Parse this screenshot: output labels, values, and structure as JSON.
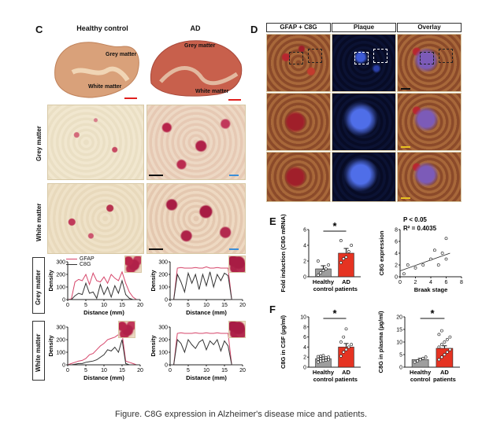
{
  "panels": {
    "C": {
      "letter": "C",
      "col_headers": [
        "Healthy control",
        "AD"
      ],
      "slice_labels": {
        "healthy": {
          "grey": "Grey matter",
          "white": "White matter"
        },
        "ad": {
          "grey": "Grey matter",
          "white": "White matter"
        }
      },
      "row_labels": [
        "Grey matter",
        "White matter"
      ],
      "profile_row_labels": [
        "Grey matter",
        "White matter"
      ],
      "legend": [
        "GFAP",
        "C8G"
      ]
    },
    "D": {
      "letter": "D",
      "col_headers": [
        "GFAP + C8G",
        "Plaque",
        "Overlay"
      ]
    },
    "E": {
      "letter": "E"
    },
    "F": {
      "letter": "F"
    }
  },
  "colors": {
    "gfap": "#d6456a",
    "c8g": "#333333",
    "healthy_bar": "#9e9e9e",
    "ad_bar": "#e53322",
    "scalebar_red": "#e0201e",
    "scalebar_black": "#111111",
    "scalebar_blue": "#3b8ed8",
    "scalebar_yellow": "#e8c320"
  },
  "chart_data": [
    {
      "id": "C-grey-healthy",
      "type": "line",
      "xlabel": "Distance (mm)",
      "ylabel": "Density",
      "xlim": [
        0,
        20
      ],
      "ylim": [
        0,
        300
      ],
      "xticks": [
        0,
        5,
        10,
        15,
        20
      ],
      "yticks": [
        0,
        100,
        200,
        300
      ],
      "legend": "top-left",
      "series": [
        {
          "name": "GFAP",
          "x": [
            0,
            1,
            2,
            3,
            4,
            5,
            6,
            7,
            8,
            9,
            10,
            11,
            12,
            13,
            14,
            15,
            16,
            17,
            18,
            19,
            20
          ],
          "y": [
            0,
            5,
            140,
            160,
            150,
            200,
            120,
            210,
            150,
            140,
            180,
            130,
            200,
            170,
            150,
            220,
            130,
            60,
            20,
            0,
            0
          ]
        },
        {
          "name": "C8G",
          "x": [
            0,
            1,
            2,
            3,
            4,
            5,
            6,
            7,
            8,
            9,
            10,
            11,
            12,
            13,
            14,
            15,
            16,
            17,
            18,
            19,
            20
          ],
          "y": [
            0,
            0,
            30,
            50,
            40,
            130,
            50,
            60,
            10,
            120,
            40,
            100,
            20,
            110,
            50,
            150,
            40,
            10,
            0,
            0,
            0
          ]
        }
      ]
    },
    {
      "id": "C-grey-ad",
      "type": "line",
      "xlabel": "Distance (mm)",
      "ylabel": "Density",
      "xlim": [
        0,
        20
      ],
      "ylim": [
        0,
        300
      ],
      "xticks": [
        0,
        5,
        10,
        15,
        20
      ],
      "yticks": [
        0,
        100,
        200,
        300
      ],
      "series": [
        {
          "name": "GFAP",
          "x": [
            0,
            1,
            2,
            3,
            4,
            5,
            6,
            7,
            8,
            9,
            10,
            11,
            12,
            13,
            14,
            15,
            16,
            17,
            18,
            19,
            20
          ],
          "y": [
            0,
            0,
            250,
            255,
            250,
            250,
            250,
            255,
            250,
            250,
            260,
            250,
            250,
            255,
            250,
            250,
            250,
            0,
            0,
            0,
            0
          ]
        },
        {
          "name": "C8G",
          "x": [
            0,
            1,
            2,
            3,
            4,
            5,
            6,
            7,
            8,
            9,
            10,
            11,
            12,
            13,
            14,
            15,
            16,
            17,
            18,
            19,
            20
          ],
          "y": [
            0,
            0,
            200,
            140,
            60,
            210,
            130,
            200,
            80,
            200,
            110,
            220,
            100,
            200,
            150,
            210,
            190,
            0,
            0,
            0,
            0
          ]
        }
      ]
    },
    {
      "id": "C-white-healthy",
      "type": "line",
      "xlabel": "Distance (mm)",
      "ylabel": "Density",
      "xlim": [
        0,
        20
      ],
      "ylim": [
        0,
        300
      ],
      "xticks": [
        0,
        5,
        10,
        15,
        20
      ],
      "yticks": [
        0,
        100,
        200,
        300
      ],
      "series": [
        {
          "name": "GFAP",
          "x": [
            0,
            1,
            2,
            3,
            4,
            5,
            6,
            7,
            8,
            9,
            10,
            11,
            12,
            13,
            14,
            15,
            16,
            17,
            18,
            19,
            20
          ],
          "y": [
            0,
            10,
            20,
            30,
            35,
            50,
            80,
            90,
            120,
            150,
            170,
            200,
            210,
            220,
            240,
            250,
            30,
            20,
            10,
            0,
            0
          ]
        },
        {
          "name": "C8G",
          "x": [
            0,
            1,
            2,
            3,
            4,
            5,
            6,
            7,
            8,
            9,
            10,
            11,
            12,
            13,
            14,
            15,
            16,
            17,
            18,
            19,
            20
          ],
          "y": [
            0,
            0,
            5,
            10,
            10,
            20,
            25,
            30,
            40,
            60,
            80,
            120,
            110,
            140,
            100,
            200,
            10,
            0,
            0,
            0,
            0
          ]
        }
      ]
    },
    {
      "id": "C-white-ad",
      "type": "line",
      "xlabel": "Distance (mm)",
      "ylabel": "Density",
      "xlim": [
        0,
        20
      ],
      "ylim": [
        0,
        300
      ],
      "xticks": [
        0,
        5,
        10,
        15,
        20
      ],
      "yticks": [
        0,
        100,
        200,
        300
      ],
      "series": [
        {
          "name": "GFAP",
          "x": [
            0,
            1,
            2,
            3,
            4,
            5,
            6,
            7,
            8,
            9,
            10,
            11,
            12,
            13,
            14,
            15,
            16,
            17,
            18,
            19,
            20
          ],
          "y": [
            0,
            0,
            250,
            255,
            250,
            250,
            250,
            255,
            250,
            250,
            255,
            250,
            250,
            255,
            250,
            250,
            250,
            0,
            0,
            0,
            0
          ]
        },
        {
          "name": "C8G",
          "x": [
            0,
            1,
            2,
            3,
            4,
            5,
            6,
            7,
            8,
            9,
            10,
            11,
            12,
            13,
            14,
            15,
            16,
            17,
            18,
            19,
            20
          ],
          "y": [
            0,
            0,
            200,
            170,
            100,
            200,
            160,
            130,
            180,
            200,
            120,
            190,
            160,
            200,
            110,
            190,
            150,
            0,
            0,
            0,
            0
          ]
        }
      ]
    },
    {
      "id": "E-left",
      "type": "bar",
      "ylabel": "Fold induction (C8G mRNA)",
      "categories": [
        "Healthy control",
        "AD patients"
      ],
      "values": [
        1.0,
        3.0
      ],
      "errors": [
        0.4,
        0.6
      ],
      "ylim": [
        0,
        6
      ],
      "yticks": [
        0,
        2,
        4,
        6
      ],
      "significance": "*",
      "points": [
        [
          0.2,
          0.5,
          0.8,
          1.0,
          1.5,
          2.0
        ],
        [
          1.8,
          2.3,
          2.5,
          3.2,
          4.0,
          4.6
        ]
      ]
    },
    {
      "id": "E-right",
      "type": "scatter",
      "xlabel": "Braak stage",
      "ylabel": "C8G expression",
      "xlim": [
        0,
        8
      ],
      "ylim": [
        0,
        8
      ],
      "xticks": [
        0,
        2,
        4,
        6,
        8
      ],
      "yticks": [
        0,
        2,
        4,
        6,
        8
      ],
      "annotations": [
        "P < 0.05",
        "R² = 0.4035"
      ],
      "x": [
        0.5,
        1,
        2,
        3,
        4,
        4.5,
        5,
        5.5,
        6,
        6
      ],
      "y": [
        0.5,
        2,
        1.5,
        2,
        3,
        4.5,
        2,
        4,
        3,
        6.5
      ],
      "fit": [
        [
          0,
          1.0
        ],
        [
          6.5,
          4.0
        ]
      ]
    },
    {
      "id": "F-left",
      "type": "bar",
      "ylabel": "C8G in CSF (µg/ml)",
      "categories": [
        "Healthy control",
        "AD patients"
      ],
      "values": [
        1.7,
        4.0
      ],
      "errors": [
        0.2,
        0.7
      ],
      "ylim": [
        0,
        10
      ],
      "yticks": [
        0,
        2,
        4,
        6,
        8,
        10
      ],
      "significance": "*",
      "points": [
        [
          1.0,
          1.2,
          1.3,
          1.4,
          1.5,
          1.6,
          1.7,
          1.8,
          1.9,
          2.0,
          2.1,
          2.2,
          2.3
        ],
        [
          2.2,
          3.0,
          3.5,
          4.0,
          4.5,
          5.0,
          6.0,
          7.6
        ]
      ]
    },
    {
      "id": "F-right",
      "type": "bar",
      "ylabel": "C8G in plasma (µg/ml)",
      "categories": [
        "Healthy control",
        "AD patients"
      ],
      "values": [
        3.0,
        7.5
      ],
      "errors": [
        0.5,
        1.0
      ],
      "ylim": [
        0,
        20
      ],
      "yticks": [
        0,
        5,
        10,
        15,
        20
      ],
      "significance": "*",
      "points": [
        [
          2.0,
          2.5,
          3.0,
          3.5,
          4.0
        ],
        [
          3.0,
          4.0,
          5.0,
          6.0,
          7.0,
          8.0,
          9.0,
          10.0,
          11.0,
          12.0,
          13.0,
          14.5
        ]
      ]
    }
  ],
  "caption": "Figure. C8G expression in Alzheimer's disease mice and patients."
}
